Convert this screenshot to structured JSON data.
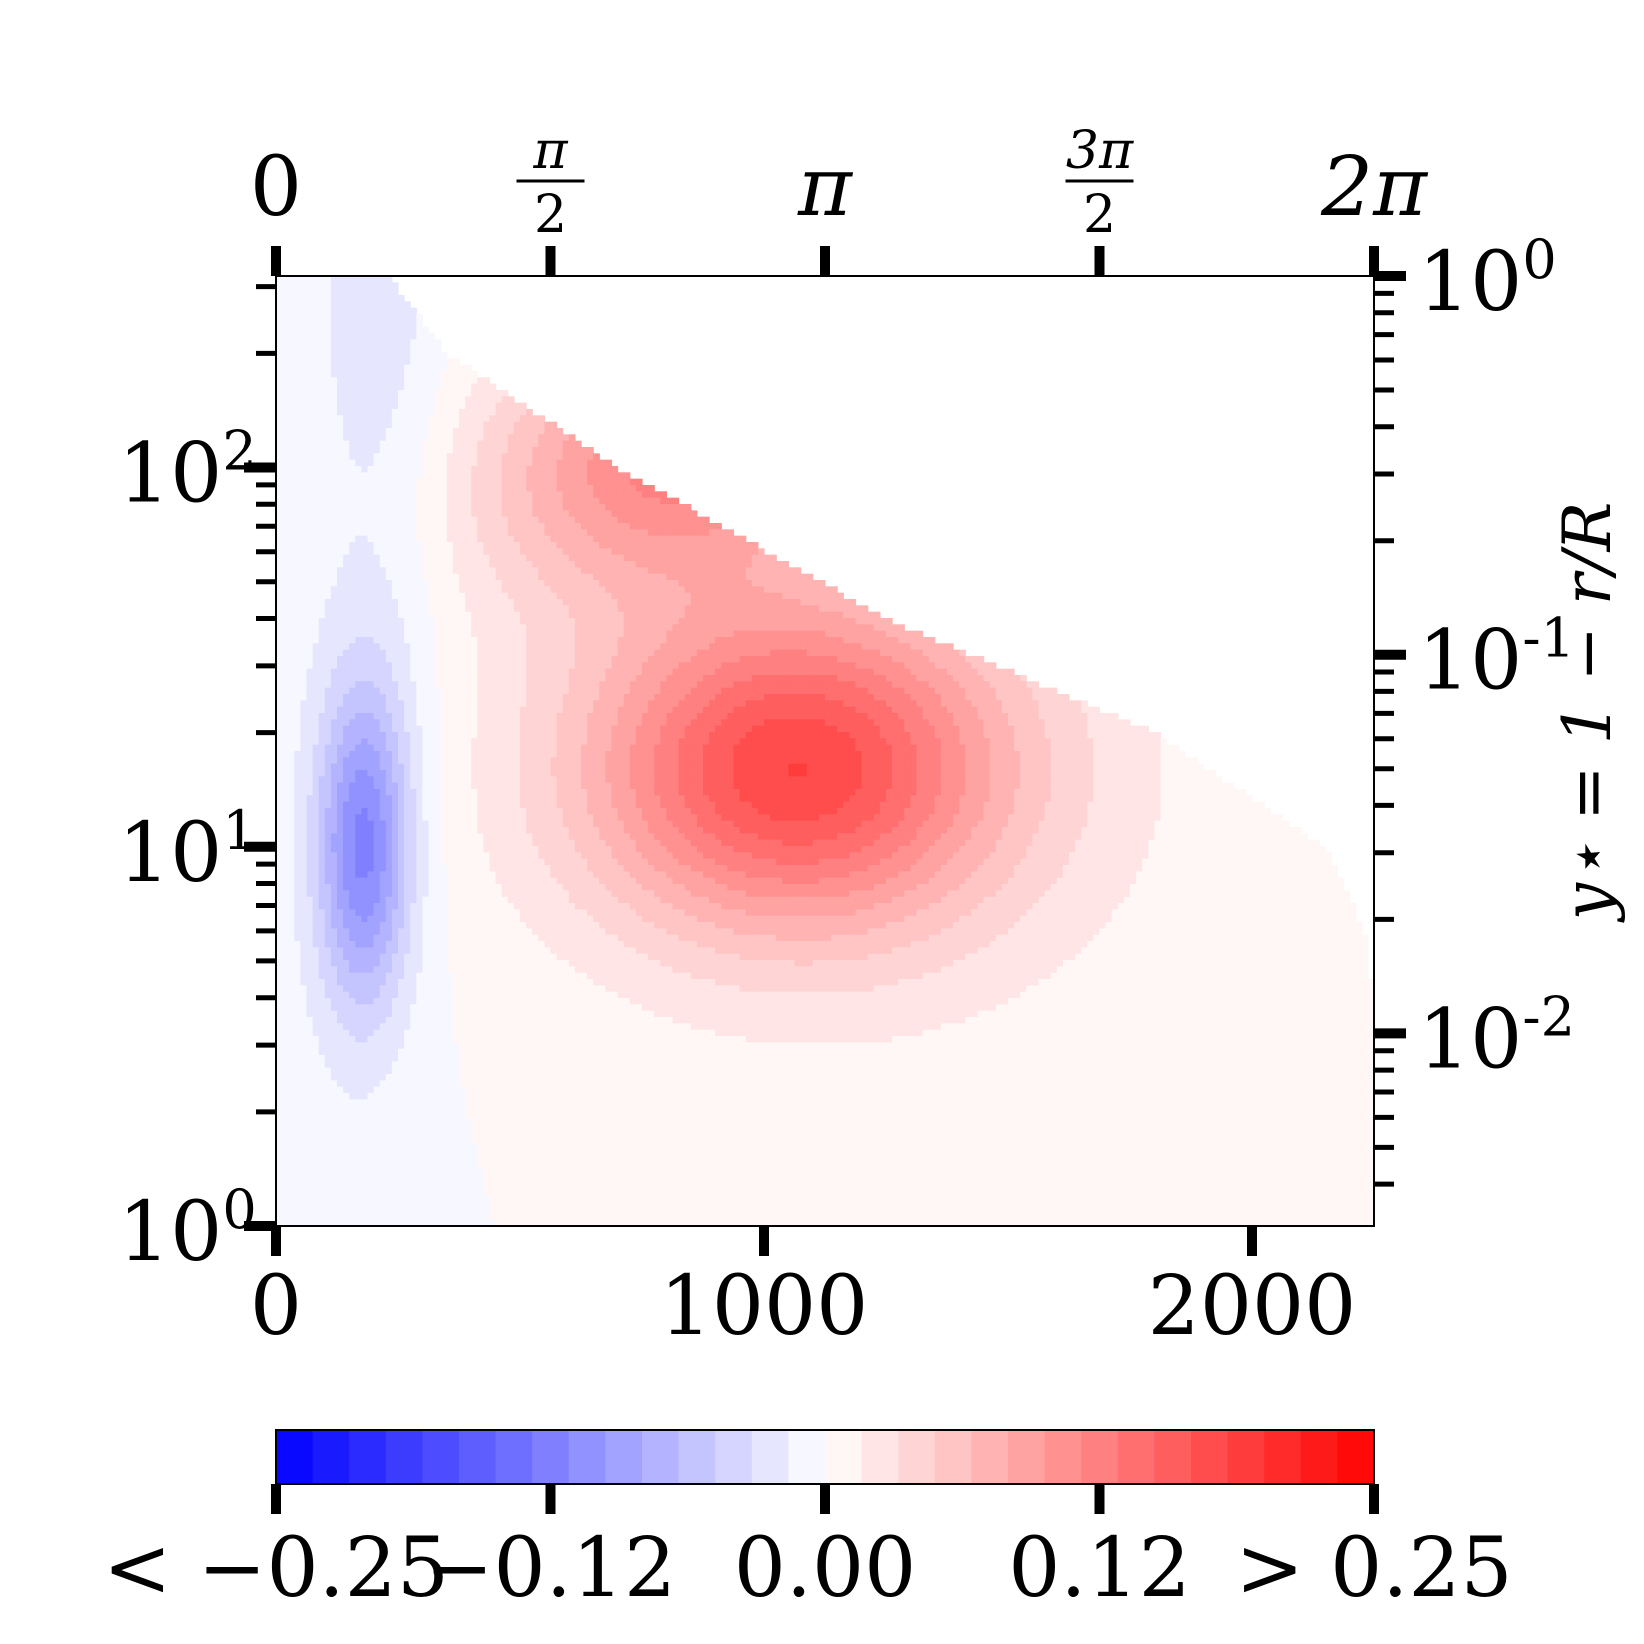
{
  "chart_data": {
    "type": "heatmap",
    "bottom_axis": {
      "range": [
        0,
        2250
      ],
      "ticks": [
        {
          "value": 0,
          "label": "0"
        },
        {
          "value": 1000,
          "label": "1000"
        },
        {
          "value": 2000,
          "label": "2000"
        }
      ]
    },
    "top_axis": {
      "range": [
        0,
        6.2832
      ],
      "ticks": [
        {
          "value": 0,
          "label": "0"
        },
        {
          "value": 1.5708,
          "num": "π",
          "den": "2"
        },
        {
          "value": 3.1416,
          "label": "π"
        },
        {
          "value": 4.7124,
          "num": "3π",
          "den": "2"
        },
        {
          "value": 6.2832,
          "label": "2π"
        }
      ]
    },
    "left_axis": {
      "scale": "log",
      "range": [
        1,
        320
      ],
      "ticks": [
        {
          "value": 1,
          "base": "10",
          "exp": "0"
        },
        {
          "value": 10,
          "base": "10",
          "exp": "1"
        },
        {
          "value": 100,
          "base": "10",
          "exp": "2"
        }
      ]
    },
    "right_axis": {
      "scale": "log",
      "range": [
        0.0031,
        1
      ],
      "label": "y⋆ = 1 − r/R",
      "ticks": [
        {
          "value": 1,
          "base": "10",
          "exp": "0"
        },
        {
          "value": 0.1,
          "base": "10",
          "exp": "-1"
        },
        {
          "value": 0.01,
          "base": "10",
          "exp": "-2"
        }
      ]
    },
    "colorbar": {
      "range": [
        -0.25,
        0.25
      ],
      "levels": 30,
      "colors": [
        "#0000ff",
        "#ffffff",
        "#ff0000"
      ],
      "ticks": [
        {
          "value": -0.25,
          "label": "< −0.25"
        },
        {
          "value": -0.125,
          "label": "−0.12"
        },
        {
          "value": 0,
          "label": "0.00"
        },
        {
          "value": 0.125,
          "label": "0.12"
        },
        {
          "value": 0.25,
          "label": "> 0.25"
        }
      ]
    },
    "field": {
      "x_max": [
        2250,
        2250,
        2250,
        2250,
        2230,
        2150,
        1800,
        1250,
        700,
        350,
        230
      ],
      "y_at_xmax": [
        1,
        1.6,
        2.5,
        4,
        6,
        10,
        20,
        40,
        100,
        200,
        320
      ],
      "features": [
        {
          "sign": "negative",
          "x": 180,
          "y": 10,
          "peak": -0.115
        },
        {
          "sign": "negative",
          "x": 230,
          "y": 150,
          "peak": -0.02
        },
        {
          "sign": "positive",
          "x": 1060,
          "y": 16,
          "peak": 0.165
        },
        {
          "sign": "positive",
          "x": 900,
          "y": 110,
          "peak": 0.12
        }
      ]
    }
  }
}
